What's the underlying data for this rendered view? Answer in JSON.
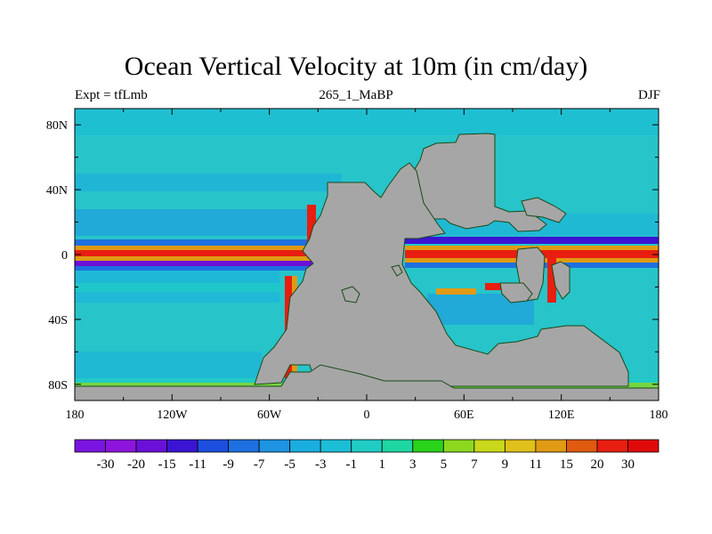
{
  "title": "Ocean Vertical Velocity at 10m (in cm/day)",
  "subtitle_left": "Expt = tfLmb",
  "subtitle_center": "265_1_MaBP",
  "subtitle_right": "DJF",
  "map": {
    "lon_range": [
      -180,
      180
    ],
    "lat_range": [
      -90,
      90
    ],
    "x_tick_labels": [
      {
        "lon": -180,
        "label": "180"
      },
      {
        "lon": -120,
        "label": "120W"
      },
      {
        "lon": -60,
        "label": "60W"
      },
      {
        "lon": 0,
        "label": "0"
      },
      {
        "lon": 60,
        "label": "60E"
      },
      {
        "lon": 120,
        "label": "120E"
      },
      {
        "lon": 180,
        "label": "180"
      }
    ],
    "y_tick_labels": [
      {
        "lat": 80,
        "label": "80N"
      },
      {
        "lat": 40,
        "label": "40N"
      },
      {
        "lat": 0,
        "label": "0"
      },
      {
        "lat": -40,
        "label": "40S"
      },
      {
        "lat": -80,
        "label": "80S"
      }
    ],
    "ocean_background": "#27c4c9",
    "land_color": "#a6a6a6"
  },
  "colorbar": {
    "labels": [
      "-30",
      "-20",
      "-15",
      "-11",
      "-9",
      "-7",
      "-5",
      "-3",
      "-1",
      "1",
      "3",
      "5",
      "7",
      "9",
      "11",
      "15",
      "20",
      "30"
    ],
    "colors": [
      "#7a14e0",
      "#8c14dc",
      "#6b10d8",
      "#3a14d2",
      "#1c4fe0",
      "#1e70e0",
      "#1e94e2",
      "#1aaee0",
      "#1cbed6",
      "#20ccc4",
      "#1ed6a2",
      "#2ad21a",
      "#8cd81e",
      "#c8d81a",
      "#e0c01a",
      "#e09a14",
      "#e05a10",
      "#e81e10",
      "#e00a0a"
    ]
  }
}
